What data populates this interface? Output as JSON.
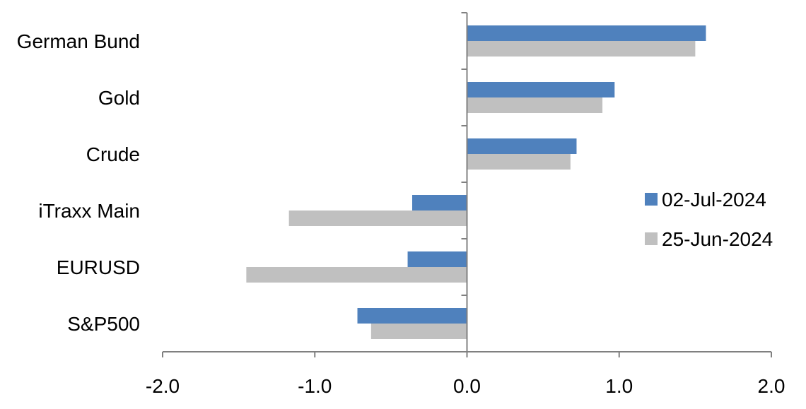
{
  "chart_data": {
    "type": "bar",
    "orientation": "horizontal",
    "categories": [
      "German Bund",
      "Gold",
      "Crude",
      "iTraxx Main",
      "EURUSD",
      "S&P500"
    ],
    "series": [
      {
        "name": "02-Jul-2024",
        "color": "#4f81bd",
        "values": [
          1.57,
          0.97,
          0.72,
          -0.36,
          -0.39,
          -0.72
        ]
      },
      {
        "name": "25-Jun-2024",
        "color": "#c0c0c0",
        "values": [
          1.5,
          0.89,
          0.68,
          -1.17,
          -1.45,
          -0.63
        ]
      }
    ],
    "xlim": [
      -2.0,
      2.0
    ],
    "xticks": [
      "-2.0",
      "-1.0",
      "0.0",
      "1.0",
      "2.0"
    ],
    "title": "",
    "xlabel": "",
    "ylabel": "",
    "grid": false,
    "legend": "right"
  }
}
